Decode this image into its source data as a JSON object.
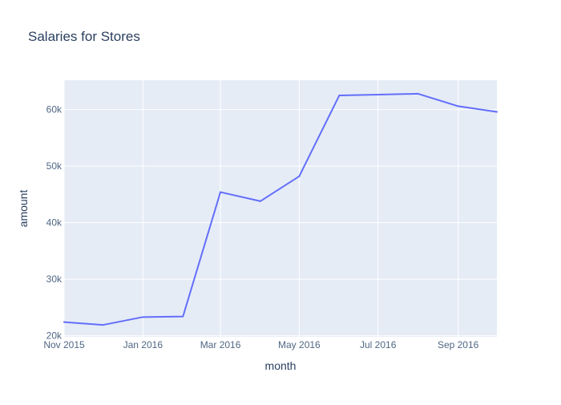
{
  "chart_data": {
    "type": "line",
    "title": "Salaries for Stores",
    "xlabel": "month",
    "ylabel": "amount",
    "x": [
      "2015-11-01",
      "2015-12-01",
      "2016-01-01",
      "2016-02-01",
      "2016-03-01",
      "2016-04-01",
      "2016-05-01",
      "2016-06-01",
      "2016-07-01",
      "2016-08-01",
      "2016-09-01",
      "2016-10-01"
    ],
    "series": [
      {
        "values": [
          22400,
          21900,
          23300,
          23400,
          45400,
          43800,
          48200,
          62500,
          62650,
          62800,
          60600,
          59600
        ]
      }
    ],
    "xlim": [
      "2015-11-01",
      "2016-10-01"
    ],
    "ylim": [
      19800,
      65200
    ],
    "x_ticks": [
      {
        "date": "2015-11-01",
        "label": "Nov 2015"
      },
      {
        "date": "2016-01-01",
        "label": "Jan 2016"
      },
      {
        "date": "2016-03-01",
        "label": "Mar 2016"
      },
      {
        "date": "2016-05-01",
        "label": "May 2016"
      },
      {
        "date": "2016-07-01",
        "label": "Jul 2016"
      },
      {
        "date": "2016-09-01",
        "label": "Sep 2016"
      }
    ],
    "y_ticks": [
      {
        "value": 20000,
        "label": "20k"
      },
      {
        "value": 30000,
        "label": "30k"
      },
      {
        "value": 40000,
        "label": "40k"
      },
      {
        "value": 50000,
        "label": "50k"
      },
      {
        "value": 60000,
        "label": "60k"
      }
    ],
    "grid": true,
    "colors": {
      "line": "#636efa",
      "plot_background": "#e5ecf6",
      "paper_background": "#ffffff"
    }
  }
}
